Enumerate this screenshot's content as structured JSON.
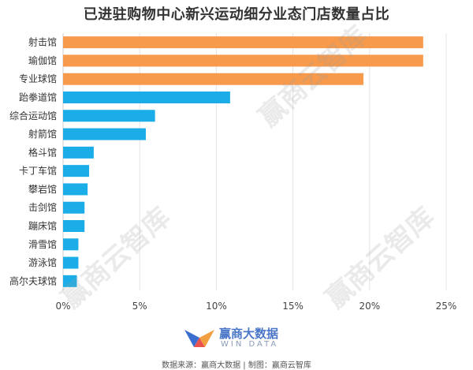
{
  "title": "已进驻购物中心新兴运动细分业态门店数量占比",
  "watermark": "赢商云智库",
  "logo": {
    "name_cn": "赢商大数据",
    "name_en": "WIN DATA"
  },
  "source": "数据来源：赢商大数据 | 制图：赢商云智库",
  "colors": {
    "highlight": "#F79A4B",
    "normal": "#1AADE8",
    "grid": "#E4E4E4",
    "logo": "#4a76c8"
  },
  "chart_data": {
    "type": "bar",
    "orientation": "horizontal",
    "categories": [
      "射击馆",
      "瑜伽馆",
      "专业球馆",
      "跆拳道馆",
      "综合运动馆",
      "射箭馆",
      "格斗馆",
      "卡丁车馆",
      "攀岩馆",
      "击剑馆",
      "蹦床馆",
      "滑雪馆",
      "游泳馆",
      "高尔夫球馆"
    ],
    "values": [
      23.5,
      23.5,
      19.6,
      10.9,
      6.0,
      5.4,
      2.0,
      1.7,
      1.6,
      1.4,
      1.4,
      1.0,
      1.0,
      0.9
    ],
    "highlighted": [
      true,
      true,
      true,
      false,
      false,
      false,
      false,
      false,
      false,
      false,
      false,
      false,
      false,
      false
    ],
    "xlim": [
      0,
      25
    ],
    "xticks": [
      0,
      5,
      10,
      15,
      20,
      25
    ],
    "xtick_labels": [
      "0%",
      "5%",
      "10%",
      "15%",
      "20%",
      "25%"
    ],
    "grid": true
  }
}
